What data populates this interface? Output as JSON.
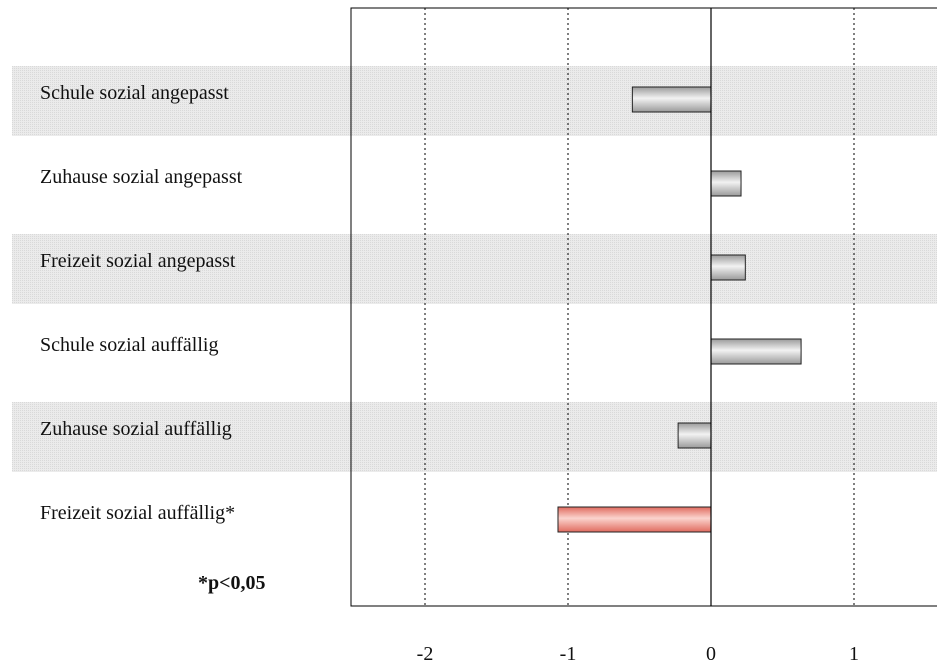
{
  "chart_data": {
    "type": "bar",
    "orientation": "horizontal",
    "categories": [
      "Schule sozial angepasst",
      "Zuhause sozial angepasst",
      "Freizeit sozial angepasst",
      "Schule sozial auffällig",
      "Zuhause sozial auffällig",
      "Freizeit sozial auffällig*"
    ],
    "values": [
      -0.55,
      0.21,
      0.24,
      0.63,
      -0.23,
      -1.07
    ],
    "significant": [
      false,
      false,
      false,
      false,
      false,
      true
    ],
    "xlim": [
      -2.5,
      1.6
    ],
    "xticks": [
      -2,
      -1,
      0,
      1
    ],
    "xtick_labels": [
      "-2",
      "-1",
      "0",
      "1"
    ],
    "grid": "vertical dotted",
    "note": "*p<0,05",
    "colors": {
      "bar": "#c4c4c4",
      "bar_significant": "#ec8b80",
      "band": "#e4e4e4",
      "zero_line": "#000000"
    }
  }
}
